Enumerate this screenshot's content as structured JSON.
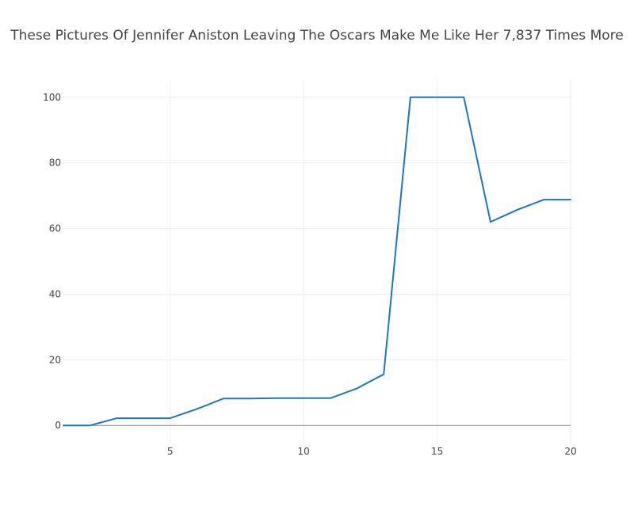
{
  "chart_data": {
    "type": "line",
    "title": "These Pictures Of Jennifer Aniston Leaving The Oscars Make Me Like Her 7,837 Times More",
    "xlabel": "",
    "ylabel": "",
    "xlim": [
      1,
      20
    ],
    "ylim": [
      -5.5,
      105.5
    ],
    "x_ticks": [
      5,
      10,
      15,
      20
    ],
    "y_ticks": [
      0,
      20,
      40,
      60,
      80,
      100
    ],
    "grid": true,
    "legend": "none",
    "series": [
      {
        "color": "#1f77b4",
        "x": [
          1,
          2,
          3,
          4,
          5,
          6,
          7,
          8,
          9,
          10,
          11,
          12,
          13,
          14,
          15,
          16,
          17,
          18,
          19,
          20
        ],
        "y": [
          0,
          0,
          2.2,
          2.2,
          2.2,
          5,
          8.2,
          8.2,
          8.3,
          8.3,
          8.3,
          11.3,
          15.6,
          100,
          100,
          100,
          62,
          65.7,
          68.8,
          68.8
        ]
      }
    ]
  }
}
